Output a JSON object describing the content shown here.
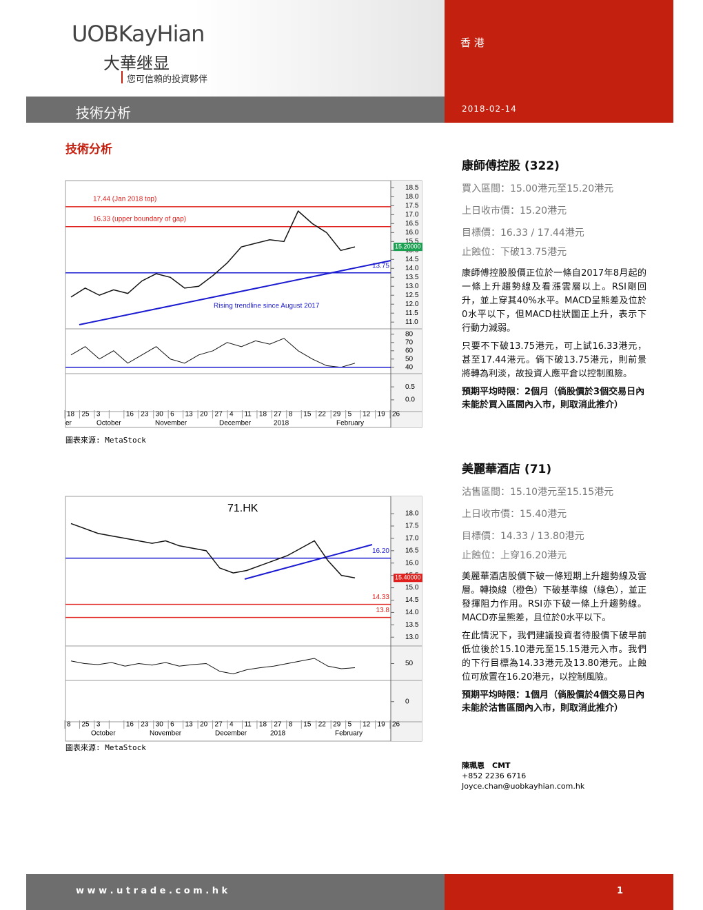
{
  "header": {
    "logo": "UOBKayHian",
    "logo_cn": "大華继显",
    "tagline": "您可信賴的投資夥伴",
    "region": "香 港",
    "section": "技術分析",
    "date": "2018-02-14"
  },
  "heading": "技術分析",
  "charts": [
    {
      "title": null,
      "ylim": [
        10.7,
        18.9
      ],
      "yticks": [
        {
          "value": 11,
          "label": "11.0"
        },
        {
          "value": 11.5,
          "label": "11.5"
        },
        {
          "value": 12,
          "label": "12.0"
        },
        {
          "value": 12.5,
          "label": "12.5"
        },
        {
          "value": 13,
          "label": "13.0"
        },
        {
          "value": 13.5,
          "label": "13.5"
        },
        {
          "value": 14,
          "label": "14.0"
        },
        {
          "value": 14.5,
          "label": "14.5"
        },
        {
          "value": 15,
          "label": "15.0"
        },
        {
          "value": 15.5,
          "label": "15.5"
        },
        {
          "value": 16,
          "label": "16.0"
        },
        {
          "value": 16.5,
          "label": "16.5"
        },
        {
          "value": 17,
          "label": "17.0"
        },
        {
          "value": 17.5,
          "label": "17.5"
        },
        {
          "value": 18,
          "label": "18.0"
        },
        {
          "value": 18.5,
          "label": "18.5"
        }
      ],
      "levels": [
        {
          "value": 17.44,
          "label": "17.44 (Jan 2018 top)",
          "color": "#e0201c"
        },
        {
          "value": 16.33,
          "label": "16.33 (upper boundary of gap)",
          "color": "#e0201c"
        },
        {
          "value": 13.75,
          "label": "13.75",
          "color": "#1a1ad0"
        }
      ],
      "annotation": "Rising trendline since August 2017",
      "last": {
        "value": 15.2,
        "label": "15.20000"
      },
      "closes": [
        12.4,
        12.9,
        12.5,
        12.8,
        12.6,
        13.3,
        13.7,
        13.5,
        12.9,
        13.0,
        13.6,
        14.3,
        15.2,
        15.4,
        15.6,
        15.5,
        17.2,
        16.5,
        16.0,
        15.0,
        15.2
      ],
      "rsi_ylim": [
        34,
        84
      ],
      "rsi_ticks": [
        40,
        50,
        60,
        70,
        80
      ],
      "rsi_level": 40,
      "rsi": [
        55,
        65,
        50,
        60,
        45,
        55,
        65,
        50,
        45,
        55,
        60,
        70,
        65,
        72,
        68,
        75,
        60,
        50,
        42,
        40,
        45
      ],
      "macd_ylim": [
        -0.4,
        0.85
      ],
      "macd_ticks": [
        0.5,
        {
          "value": 0,
          "label": "0.0"
        }
      ],
      "dates": [
        "18",
        "25",
        "3",
        null,
        "16",
        "23",
        "30",
        "6",
        "13",
        "20",
        "27",
        "4",
        "11",
        "18",
        "27",
        "8",
        "15",
        "22",
        "29",
        "5",
        "12",
        "19",
        "26"
      ],
      "months": [
        "er",
        "October",
        "November",
        "December",
        "2018",
        "February"
      ],
      "source": "圖表來源: MetaStock"
    },
    {
      "title": "71.HK",
      "ylim": [
        12.7,
        18.7
      ],
      "yticks": [
        {
          "value": 13,
          "label": "13.0"
        },
        {
          "value": 13.5,
          "label": "13.5"
        },
        {
          "value": 14,
          "label": "14.0"
        },
        {
          "value": 14.5,
          "label": "14.5"
        },
        {
          "value": 15,
          "label": "15.0"
        },
        {
          "value": 15.5,
          "label": "15.5"
        },
        {
          "value": 16,
          "label": "16.0"
        },
        {
          "value": 16.5,
          "label": "16.5"
        },
        {
          "value": 17,
          "label": "17.0"
        },
        {
          "value": 17.5,
          "label": "17.5"
        },
        {
          "value": 18,
          "label": "18.0"
        }
      ],
      "levels": [
        {
          "value": 16.2,
          "label": "16.20",
          "color": "#1a1ad0"
        },
        {
          "value": 14.33,
          "label": "14.33",
          "color": "#e0201c"
        },
        {
          "value": 13.8,
          "label": "13.8",
          "color": "#e0201c"
        }
      ],
      "annotation": null,
      "last": {
        "value": 15.4,
        "label": "15.40000"
      },
      "closes": [
        17.6,
        17.4,
        17.2,
        17.1,
        17.0,
        16.9,
        16.8,
        16.9,
        16.7,
        16.6,
        16.5,
        15.8,
        15.6,
        15.7,
        15.9,
        16.1,
        16.3,
        16.6,
        16.9,
        16.1,
        15.5,
        15.4
      ],
      "rsi_ylim": [
        20,
        80
      ],
      "rsi_ticks": [
        50
      ],
      "rsi_level": null,
      "rsi": [
        55,
        50,
        48,
        52,
        45,
        50,
        47,
        52,
        45,
        48,
        50,
        35,
        30,
        38,
        42,
        45,
        50,
        55,
        60,
        45,
        40,
        42
      ],
      "macd_ylim": [
        -0.6,
        0.5
      ],
      "macd_ticks": [
        0
      ],
      "dates": [
        "8",
        "25",
        "3",
        null,
        "16",
        "23",
        "30",
        "6",
        "13",
        "20",
        "27",
        "4",
        "11",
        "18",
        "27",
        "8",
        "15",
        "22",
        "29",
        "5",
        "12",
        "19",
        "26"
      ],
      "months": [
        "October",
        "November",
        "December",
        "2018",
        "February"
      ],
      "source": "圖表來源: MetaStock"
    }
  ],
  "stocks": [
    {
      "name": "康師傅控股 (322)",
      "lines": [
        "買入區間：15.00港元至15.20港元",
        "上日收市價：15.20港元",
        "目標價：16.33 / 17.44港元",
        "止蝕位：下破13.75港元"
      ],
      "paragraphs": [
        "康師傅控股股價正位於一條自2017年8月起的一條上升趨勢線及看漲雲層以上。RSI剛回升，並上穿其40%水平。MACD呈熊差及位於0水平以下，但MACD柱狀圖正上升，表示下行動力減弱。",
        "只要不下破13.75港元，可上試16.33港元，甚至17.44港元。倘下破13.75港元，則前景將轉為利淡，故投資人應平倉以控制風險。"
      ],
      "horizon": "預期平均時限：2個月（倘股價於3個交易日內未能於買入區間內入市，則取消此推介）"
    },
    {
      "name": "美麗華酒店 (71)",
      "lines": [
        "沽售區間：15.10港元至15.15港元",
        "上日收市價：15.40港元",
        "目標價：14.33 / 13.80港元",
        "止蝕位：上穿16.20港元"
      ],
      "paragraphs": [
        "美麗華酒店股價下破一條短期上升趨勢線及雲層。轉換線（橙色）下破基準線（綠色），並正發揮阻力作用。RSI亦下破一條上升趨勢線。MACD亦呈熊差，且位於0水平以下。",
        "在此情況下，我們建議投資者待股價下破早前低位後於15.10港元至15.15港元入市。我們的下行目標為14.33港元及13.80港元。止蝕位可放置在16.20港元，以控制風險。"
      ],
      "horizon": "預期平均時限：1個月（倘股價於4個交易日內未能於沽售區間內入市，則取消此推介）"
    }
  ],
  "author": {
    "name": "陳珮恩　CMT",
    "phone": "+852 2236 6716",
    "email": "Joyce.chan@uobkayhian.com.hk"
  },
  "footer": {
    "url": "w w w . u t r a d e . c o m . h k",
    "page": "1"
  }
}
